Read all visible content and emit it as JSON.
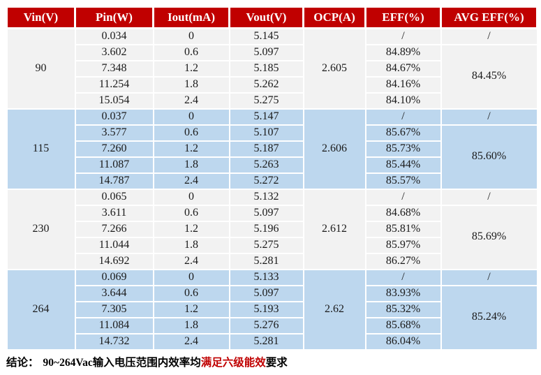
{
  "colors": {
    "header_bg": "#C00000",
    "header_text": "#FFFFFF",
    "group_bg_gray": "#F2F2F2",
    "group_bg_blue": "#BDD7EE",
    "conclusion_highlight": "#C00000"
  },
  "table": {
    "headers": {
      "vin": "Vin(V)",
      "pin": "Pin(W)",
      "iout": "Iout(mA)",
      "vout": "Vout(V)",
      "ocp": "OCP(A)",
      "eff": "EFF(%)",
      "avg_eff": "AVG EFF(%)"
    },
    "groups": [
      {
        "vin": "90",
        "ocp": "2.605",
        "avg_eff_first": "/",
        "avg_eff": "84.45%",
        "rows": [
          {
            "pin": "0.034",
            "iout": "0",
            "vout": "5.145",
            "eff": "/"
          },
          {
            "pin": "3.602",
            "iout": "0.6",
            "vout": "5.097",
            "eff": "84.89%"
          },
          {
            "pin": "7.348",
            "iout": "1.2",
            "vout": "5.185",
            "eff": "84.67%"
          },
          {
            "pin": "11.254",
            "iout": "1.8",
            "vout": "5.262",
            "eff": "84.16%"
          },
          {
            "pin": "15.054",
            "iout": "2.4",
            "vout": "5.275",
            "eff": "84.10%"
          }
        ]
      },
      {
        "vin": "115",
        "ocp": "2.606",
        "avg_eff_first": "/",
        "avg_eff": "85.60%",
        "rows": [
          {
            "pin": "0.037",
            "iout": "0",
            "vout": "5.147",
            "eff": "/"
          },
          {
            "pin": "3.577",
            "iout": "0.6",
            "vout": "5.107",
            "eff": "85.67%"
          },
          {
            "pin": "7.260",
            "iout": "1.2",
            "vout": "5.187",
            "eff": "85.73%"
          },
          {
            "pin": "11.087",
            "iout": "1.8",
            "vout": "5.263",
            "eff": "85.44%"
          },
          {
            "pin": "14.787",
            "iout": "2.4",
            "vout": "5.272",
            "eff": "85.57%"
          }
        ]
      },
      {
        "vin": "230",
        "ocp": "2.612",
        "avg_eff_first": "/",
        "avg_eff": "85.69%",
        "rows": [
          {
            "pin": "0.065",
            "iout": "0",
            "vout": "5.132",
            "eff": "/"
          },
          {
            "pin": "3.611",
            "iout": "0.6",
            "vout": "5.097",
            "eff": "84.68%"
          },
          {
            "pin": "7.266",
            "iout": "1.2",
            "vout": "5.196",
            "eff": "85.81%"
          },
          {
            "pin": "11.044",
            "iout": "1.8",
            "vout": "5.275",
            "eff": "85.97%"
          },
          {
            "pin": "14.692",
            "iout": "2.4",
            "vout": "5.281",
            "eff": "86.27%"
          }
        ]
      },
      {
        "vin": "264",
        "ocp": "2.62",
        "avg_eff_first": "/",
        "avg_eff": "85.24%",
        "rows": [
          {
            "pin": "0.069",
            "iout": "0",
            "vout": "5.133",
            "eff": "/"
          },
          {
            "pin": "3.644",
            "iout": "0.6",
            "vout": "5.097",
            "eff": "83.93%"
          },
          {
            "pin": "7.305",
            "iout": "1.2",
            "vout": "5.193",
            "eff": "85.32%"
          },
          {
            "pin": "11.084",
            "iout": "1.8",
            "vout": "5.276",
            "eff": "85.68%"
          },
          {
            "pin": "14.732",
            "iout": "2.4",
            "vout": "5.281",
            "eff": "86.04%"
          }
        ]
      }
    ]
  },
  "conclusion": {
    "label": "结论：",
    "text_before": "90~264Vac输入电压范围内效率均",
    "highlight": "满足六级能效",
    "text_after": "要求"
  }
}
